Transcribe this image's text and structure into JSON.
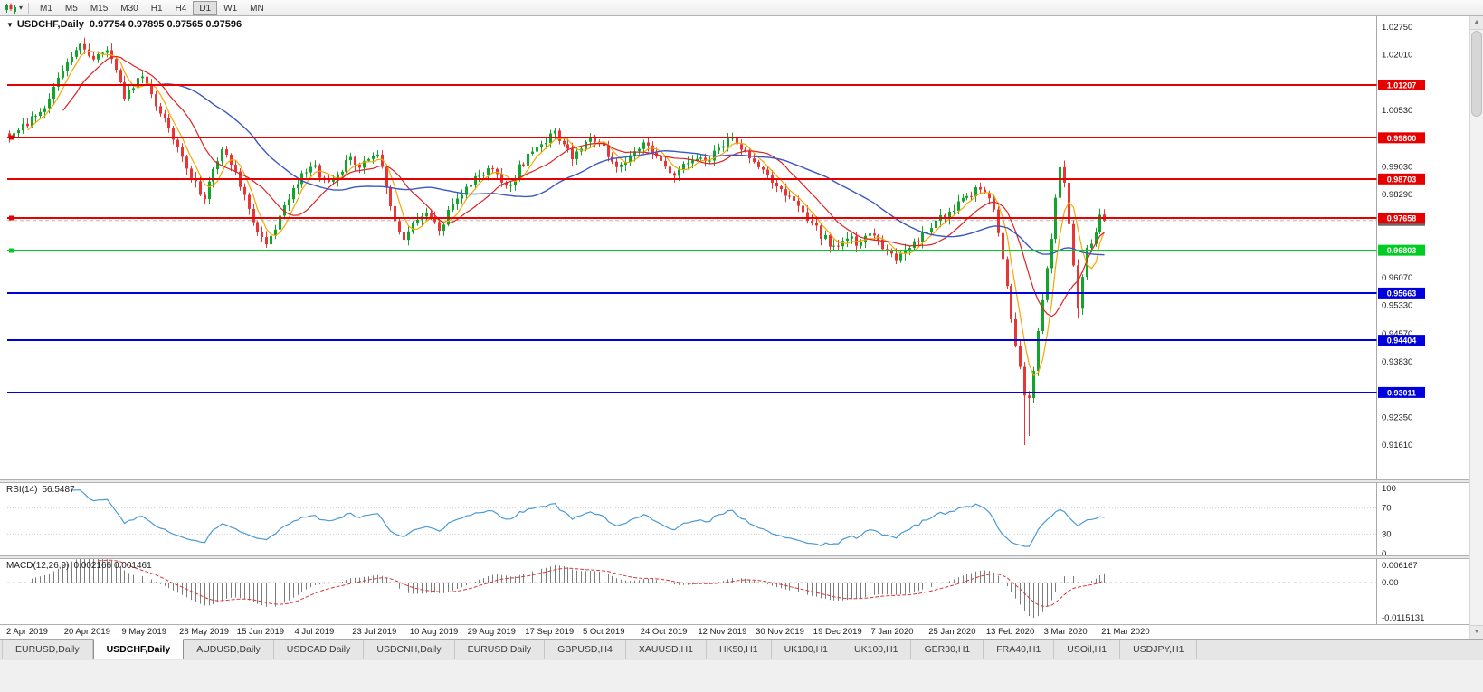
{
  "window": {
    "bg": "#f0f0f0"
  },
  "toolbar": {
    "timeframes": [
      "M1",
      "M5",
      "M15",
      "M30",
      "H1",
      "H4",
      "D1",
      "W1",
      "MN"
    ],
    "active_timeframe": "D1"
  },
  "chart": {
    "title": "USDCHF,Daily",
    "ohlc_text": "0.97754 0.97895 0.97565 0.97596",
    "collapse_icon": "▼",
    "y_ticks": [
      "1.02750",
      "1.02010",
      "1.00530",
      "0.99030",
      "0.98290",
      "0.96070",
      "0.95330",
      "0.94570",
      "0.93830",
      "0.92350",
      "0.91610"
    ],
    "y_tick_values": [
      1.0275,
      1.0201,
      1.0053,
      0.9903,
      0.9829,
      0.9607,
      0.9533,
      0.9457,
      0.9383,
      0.9235,
      0.9161
    ],
    "hlines": [
      {
        "price": 1.01207,
        "label": "1.01207",
        "color": "#e60000",
        "handle": false
      },
      {
        "price": 0.998,
        "label": "0.99800",
        "color": "#e60000",
        "handle": true
      },
      {
        "price": 0.98703,
        "label": "0.98703",
        "color": "#e60000",
        "handle": false
      },
      {
        "price": 0.97658,
        "label": "0.97658",
        "color": "#e60000",
        "handle": true
      },
      {
        "price": 0.96803,
        "label": "0.96803",
        "color": "#00cc22",
        "handle": true
      },
      {
        "price": 0.95663,
        "label": "0.95663",
        "color": "#0000dd",
        "handle": false
      },
      {
        "price": 0.94404,
        "label": "0.94404",
        "color": "#0000dd",
        "handle": false
      },
      {
        "price": 0.93011,
        "label": "0.93011",
        "color": "#0000dd",
        "handle": false
      }
    ],
    "current_price": {
      "value": 0.97596,
      "label": "0.97596",
      "tag_color": "#6a6a6a"
    },
    "dates": [
      "2 Apr 2019",
      "20 Apr 2019",
      "9 May 2019",
      "28 May 2019",
      "15 Jun 2019",
      "4 Jul 2019",
      "23 Jul 2019",
      "10 Aug 2019",
      "29 Aug 2019",
      "17 Sep 2019",
      "5 Oct 2019",
      "24 Oct 2019",
      "12 Nov 2019",
      "30 Nov 2019",
      "19 Dec 2019",
      "7 Jan 2020",
      "25 Jan 2020",
      "13 Feb 2020",
      "3 Mar 2020",
      "21 Mar 2020"
    ],
    "colors": {
      "up": "#11a52b",
      "down": "#e93535",
      "ma_fast": "#f5a800",
      "ma_mid": "#dd2222",
      "ma_slow": "#3a57c4"
    }
  },
  "rsi": {
    "title": "RSI(14)",
    "value": "56.5487",
    "levels": [
      "100",
      "70",
      "30",
      "0"
    ],
    "level_values": [
      100,
      70,
      30,
      0
    ],
    "line_color": "#4a9ad4"
  },
  "macd": {
    "title": "MACD(12,26,9)",
    "values": "0.002166 0.001461",
    "axis_labels": [
      "0.006167",
      "0.00",
      "-0.0115131"
    ],
    "hist_color": "#7c7c7c",
    "signal_color": "#d23a3a"
  },
  "tabs": [
    {
      "label": "EURUSD,Daily",
      "active": false
    },
    {
      "label": "USDCHF,Daily",
      "active": true
    },
    {
      "label": "AUDUSD,Daily",
      "active": false
    },
    {
      "label": "USDCAD,Daily",
      "active": false
    },
    {
      "label": "USDCNH,Daily",
      "active": false
    },
    {
      "label": "EURUSD,Daily",
      "active": false
    },
    {
      "label": "GBPUSD,H4",
      "active": false
    },
    {
      "label": "XAUUSD,H1",
      "active": false
    },
    {
      "label": "HK50,H1",
      "active": false
    },
    {
      "label": "UK100,H1",
      "active": false
    },
    {
      "label": "UK100,H1",
      "active": false
    },
    {
      "label": "GER30,H1",
      "active": false
    },
    {
      "label": "FRA40,H1",
      "active": false
    },
    {
      "label": "USOil,H1",
      "active": false
    },
    {
      "label": "USDJPY,H1",
      "active": false
    }
  ],
  "chart_data": {
    "type": "candlestick",
    "symbol": "USDCHF",
    "timeframe": "Daily",
    "x_range": [
      "2 Apr 2019",
      "21 Mar 2020"
    ],
    "y_range": [
      0.9161,
      1.0275
    ],
    "candle_count": 248,
    "last_candle": {
      "open": 0.97754,
      "high": 0.97895,
      "low": 0.97565,
      "close": 0.97596
    },
    "support_resistance": [
      1.01207,
      0.998,
      0.98703,
      0.97658,
      0.96803,
      0.95663,
      0.94404,
      0.93011
    ],
    "close_waypoints": [
      [
        0,
        0.998
      ],
      [
        2,
        1.0005
      ],
      [
        4,
        1.002
      ],
      [
        7,
        1.004
      ],
      [
        10,
        1.012
      ],
      [
        12,
        1.015
      ],
      [
        14,
        1.019
      ],
      [
        16,
        1.0225
      ],
      [
        18,
        1.0205
      ],
      [
        20,
        1.0195
      ],
      [
        22,
        1.0215
      ],
      [
        24,
        1.016
      ],
      [
        26,
        1.0085
      ],
      [
        27,
        1.01
      ],
      [
        30,
        1.0145
      ],
      [
        32,
        1.01
      ],
      [
        34,
        1.005
      ],
      [
        36,
        1.0
      ],
      [
        38,
        0.995
      ],
      [
        40,
        0.99
      ],
      [
        42,
        0.986
      ],
      [
        44,
        0.981
      ],
      [
        46,
        0.99
      ],
      [
        48,
        0.9945
      ],
      [
        50,
        0.9905
      ],
      [
        52,
        0.9855
      ],
      [
        54,
        0.98
      ],
      [
        56,
        0.972
      ],
      [
        58,
        0.969
      ],
      [
        60,
        0.9745
      ],
      [
        62,
        0.98
      ],
      [
        64,
        0.985
      ],
      [
        66,
        0.988
      ],
      [
        69,
        0.99
      ],
      [
        71,
        0.986
      ],
      [
        73,
        0.9875
      ],
      [
        75,
        0.99
      ],
      [
        77,
        0.992
      ],
      [
        79,
        0.99
      ],
      [
        81,
        0.9925
      ],
      [
        83,
        0.993
      ],
      [
        84,
        0.99
      ],
      [
        86,
        0.98
      ],
      [
        87,
        0.975
      ],
      [
        89,
        0.97
      ],
      [
        91,
        0.975
      ],
      [
        93,
        0.978
      ],
      [
        95,
        0.976
      ],
      [
        97,
        0.973
      ],
      [
        99,
        0.978
      ],
      [
        101,
        0.982
      ],
      [
        103,
        0.985
      ],
      [
        106,
        0.988
      ],
      [
        109,
        0.99
      ],
      [
        111,
        0.987
      ],
      [
        113,
        0.9855
      ],
      [
        115,
        0.99
      ],
      [
        117,
        0.993
      ],
      [
        119,
        0.995
      ],
      [
        121,
        0.9975
      ],
      [
        123,
        0.999
      ],
      [
        125,
        0.996
      ],
      [
        127,
        0.993
      ],
      [
        129,
        0.996
      ],
      [
        131,
        0.9975
      ],
      [
        134,
        0.995
      ],
      [
        136,
        0.992
      ],
      [
        138,
        0.9905
      ],
      [
        140,
        0.993
      ],
      [
        142,
        0.9955
      ],
      [
        144,
        0.996
      ],
      [
        146,
        0.994
      ],
      [
        148,
        0.9905
      ],
      [
        150,
        0.9885
      ],
      [
        152,
        0.99
      ],
      [
        154,
        0.993
      ],
      [
        157,
        0.992
      ],
      [
        159,
        0.994
      ],
      [
        161,
        0.996
      ],
      [
        163,
        0.9985
      ],
      [
        165,
        0.995
      ],
      [
        167,
        0.992
      ],
      [
        169,
        0.99
      ],
      [
        171,
        0.988
      ],
      [
        173,
        0.9855
      ],
      [
        175,
        0.983
      ],
      [
        177,
        0.9805
      ],
      [
        179,
        0.978
      ],
      [
        181,
        0.9755
      ],
      [
        183,
        0.972
      ],
      [
        185,
        0.97
      ],
      [
        187,
        0.9685
      ],
      [
        189,
        0.972
      ],
      [
        191,
        0.97
      ],
      [
        194,
        0.972
      ],
      [
        196,
        0.97
      ],
      [
        198,
        0.9675
      ],
      [
        200,
        0.9662
      ],
      [
        202,
        0.968
      ],
      [
        204,
        0.9705
      ],
      [
        206,
        0.972
      ],
      [
        208,
        0.974
      ],
      [
        210,
        0.9765
      ],
      [
        212,
        0.9785
      ],
      [
        214,
        0.9805
      ],
      [
        216,
        0.9825
      ],
      [
        218,
        0.984
      ],
      [
        220,
        0.9838
      ],
      [
        221,
        0.9815
      ],
      [
        222,
        0.978
      ],
      [
        223,
        0.972
      ],
      [
        224,
        0.965
      ],
      [
        225,
        0.958
      ],
      [
        226,
        0.9505
      ],
      [
        227,
        0.943
      ],
      [
        228,
        0.936
      ],
      [
        229,
        0.93
      ],
      [
        230,
        0.9285
      ],
      [
        231,
        0.935
      ],
      [
        232,
        0.9455
      ],
      [
        233,
        0.955
      ],
      [
        234,
        0.9625
      ],
      [
        235,
        0.97
      ],
      [
        236,
        0.9815
      ],
      [
        237,
        0.9905
      ],
      [
        238,
        0.985
      ],
      [
        239,
        0.975
      ],
      [
        240,
        0.9635
      ],
      [
        241,
        0.953
      ],
      [
        242,
        0.96
      ],
      [
        243,
        0.968
      ],
      [
        244,
        0.9705
      ],
      [
        245,
        0.972
      ],
      [
        246,
        0.9775
      ],
      [
        247,
        0.97596
      ]
    ],
    "low_overrides": [
      [
        229,
        0.9161
      ],
      [
        230,
        0.9185
      ],
      [
        241,
        0.95
      ]
    ],
    "high_overrides": [
      [
        16,
        1.0232
      ],
      [
        237,
        0.9922
      ]
    ],
    "indicators": {
      "rsi": {
        "period": 14,
        "current": 56.5487
      },
      "macd": {
        "fast": 12,
        "slow": 26,
        "signal": 9,
        "macd_current": 0.002166,
        "signal_current": 0.001461,
        "panel_max_label": 0.006167,
        "panel_min_label": -0.0115131
      }
    }
  }
}
